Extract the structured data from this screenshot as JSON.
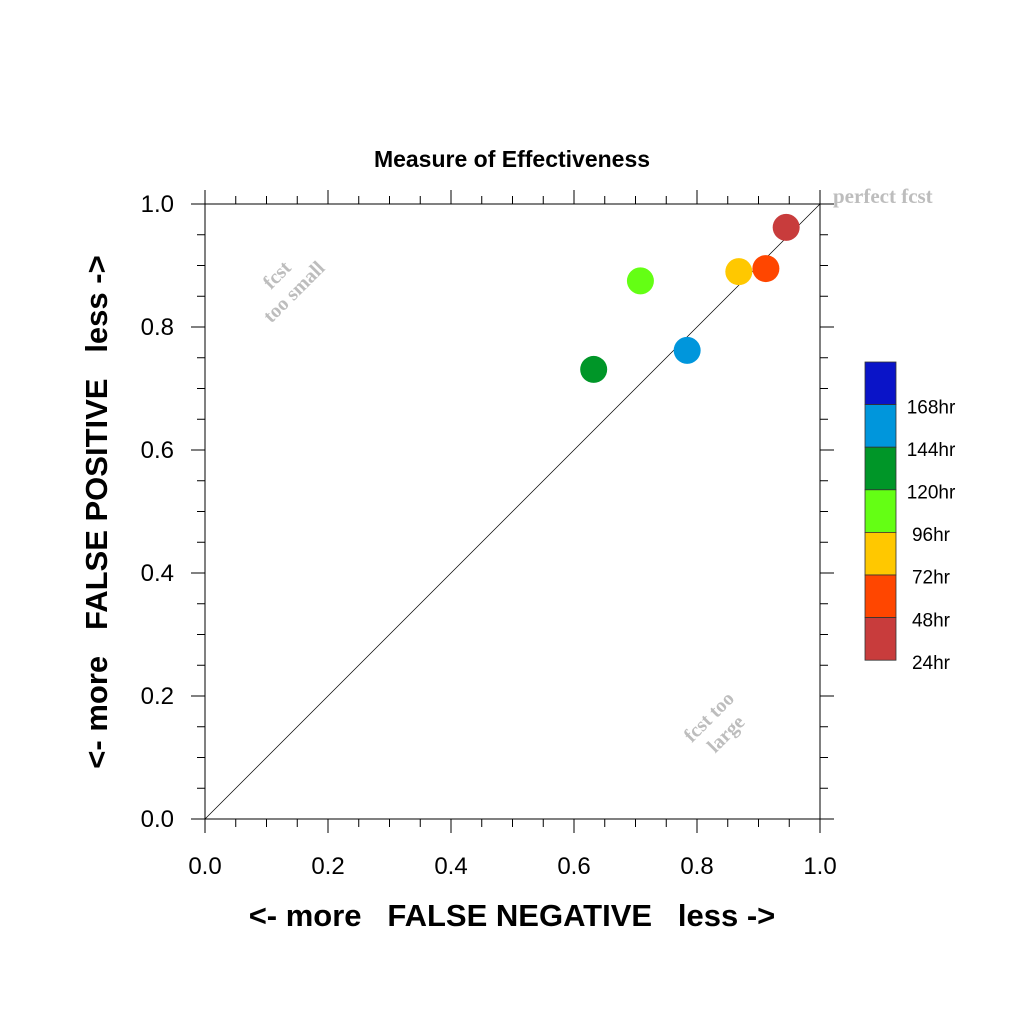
{
  "chart_data": {
    "type": "scatter",
    "title": "Measure of Effectiveness",
    "xlabel": "<- more   FALSE NEGATIVE   less ->",
    "ylabel": "<- more   FALSE POSITIVE   less ->",
    "xlim": [
      0,
      1
    ],
    "ylim": [
      0,
      1
    ],
    "x_ticks": [
      "0.0",
      "0.2",
      "0.4",
      "0.6",
      "0.8",
      "1.0"
    ],
    "y_ticks": [
      "0.0",
      "0.2",
      "0.4",
      "0.6",
      "0.8",
      "1.0"
    ],
    "diagonal_line": true,
    "annotations": {
      "perfect": "perfect fcst",
      "too_small_line1": "fcst",
      "too_small_line2": "too small",
      "too_large_line1": "fcst too",
      "too_large_line2": "large"
    },
    "legend_placement": "right",
    "legend": [
      {
        "label": "168hr",
        "color": "#0a14c8"
      },
      {
        "label": "144hr",
        "color": "#0096dc"
      },
      {
        "label": "120hr",
        "color": "#009628"
      },
      {
        "label": "96hr",
        "color": "#64ff14"
      },
      {
        "label": "72hr",
        "color": "#ffc800"
      },
      {
        "label": "48hr",
        "color": "#ff4600"
      },
      {
        "label": "24hr",
        "color": "#c83c3c"
      }
    ],
    "points": [
      {
        "series": "24hr",
        "x": 0.945,
        "y": 0.962,
        "color": "#c83c3c"
      },
      {
        "series": "48hr",
        "x": 0.912,
        "y": 0.895,
        "color": "#ff4600"
      },
      {
        "series": "72hr",
        "x": 0.868,
        "y": 0.89,
        "color": "#ffc800"
      },
      {
        "series": "96hr",
        "x": 0.708,
        "y": 0.875,
        "color": "#64ff14"
      },
      {
        "series": "120hr",
        "x": 0.632,
        "y": 0.731,
        "color": "#009628"
      },
      {
        "series": "144hr",
        "x": 0.784,
        "y": 0.762,
        "color": "#0096dc"
      }
    ]
  }
}
